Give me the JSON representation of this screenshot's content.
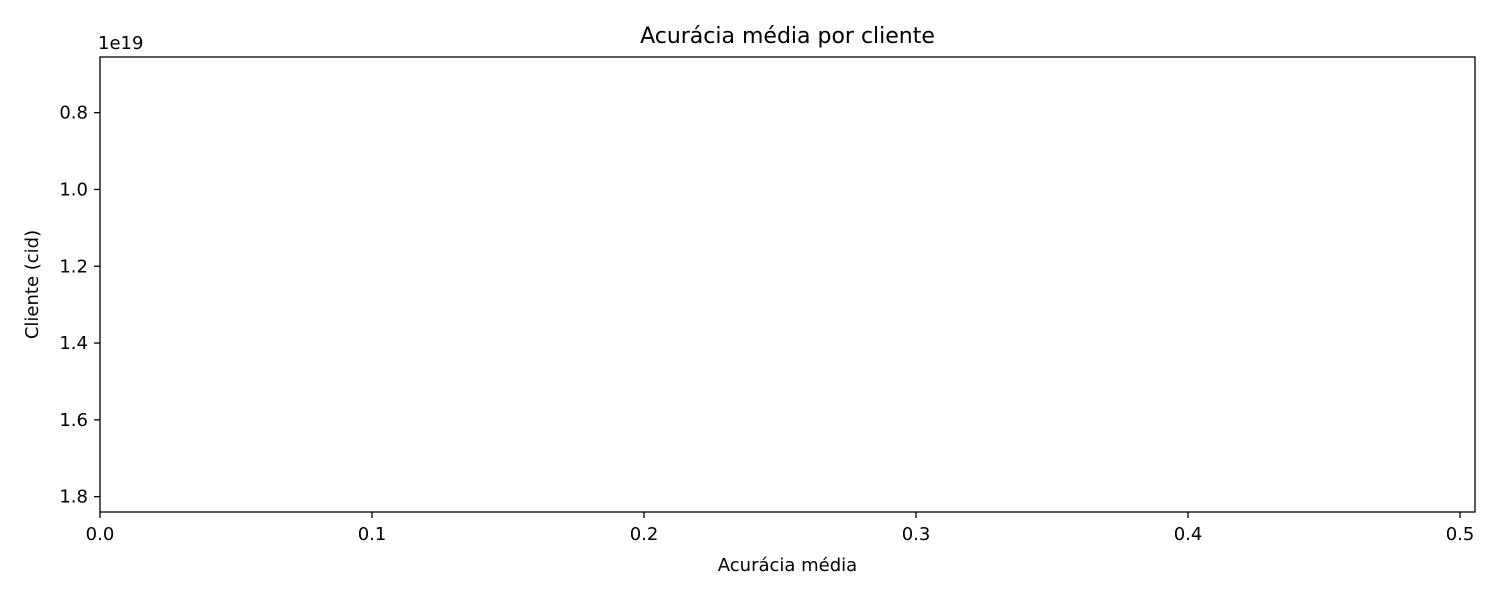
{
  "chart_data": {
    "type": "bar",
    "orientation": "horizontal",
    "title": "Acurácia média por cliente",
    "xlabel": "Acurácia média",
    "ylabel": "Cliente (cid)",
    "y_offset_label": "1e19",
    "xlim": [
      0,
      0.5055
    ],
    "ylim": [
      1.84,
      0.655
    ],
    "y_scale_multiplier": 1e+19,
    "x_ticks": [
      0.0,
      0.1,
      0.2,
      0.3,
      0.4,
      0.5
    ],
    "x_tick_labels": [
      "0.0",
      "0.1",
      "0.2",
      "0.3",
      "0.4",
      "0.5"
    ],
    "y_ticks": [
      0.8,
      1.0,
      1.2,
      1.4,
      1.6,
      1.8
    ],
    "y_tick_labels": [
      "0.8",
      "1.0",
      "1.2",
      "1.4",
      "1.6",
      "1.8"
    ],
    "y_inverted": true,
    "categories": [],
    "values": [],
    "grid": false,
    "legend": "none"
  }
}
